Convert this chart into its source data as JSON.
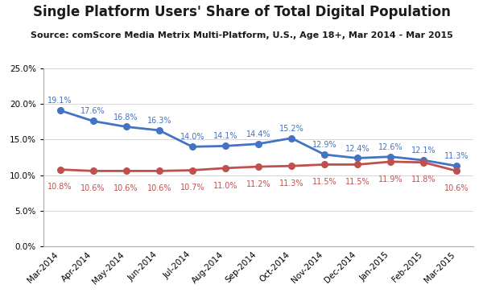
{
  "title": "Single Platform Users' Share of Total Digital Population",
  "subtitle": "Source: comScore Media Metrix Multi-Platform, U.S., Age 18+, Mar 2014 - Mar 2015",
  "categories": [
    "Mar-2014",
    "Apr-2014",
    "May-2014",
    "Jun-2014",
    "Jul-2014",
    "Aug-2014",
    "Sep-2014",
    "Oct-2014",
    "Nov-2014",
    "Dec-2014",
    "Jan-2015",
    "Feb-2015",
    "Mar-2015"
  ],
  "desktop_values": [
    19.1,
    17.6,
    16.8,
    16.3,
    14.0,
    14.1,
    14.4,
    15.2,
    12.9,
    12.4,
    12.6,
    12.1,
    11.3
  ],
  "mobile_values": [
    10.8,
    10.6,
    10.6,
    10.6,
    10.7,
    11.0,
    11.2,
    11.3,
    11.5,
    11.5,
    11.9,
    11.8,
    10.6
  ],
  "desktop_color": "#4472C4",
  "mobile_color": "#C0504D",
  "ylim": [
    0.0,
    25.0
  ],
  "yticks": [
    0.0,
    5.0,
    10.0,
    15.0,
    20.0,
    25.0
  ],
  "background_color": "#FFFFFF",
  "title_fontsize": 12,
  "subtitle_fontsize": 8,
  "label_fontsize": 7,
  "legend_fontsize": 9,
  "tick_fontsize": 7.5
}
